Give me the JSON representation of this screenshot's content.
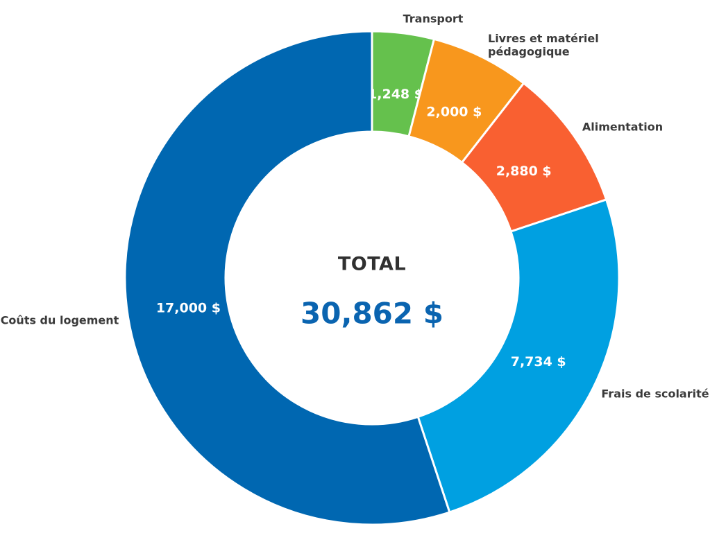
{
  "chart_data": {
    "type": "pie",
    "subtype": "donut",
    "start_angle": "top",
    "direction": "clockwise",
    "total": 30862,
    "center": {
      "label": "TOTAL",
      "value_text": "30,862 $"
    },
    "slices": [
      {
        "slug": "transport",
        "label": "Transport",
        "label_lines": [
          "Transport"
        ],
        "value": 1248,
        "value_text": "1,248 $",
        "color": "#65C14D"
      },
      {
        "slug": "livres-et-materiel-pedagogique",
        "label": "Livres et matériel pédagogique",
        "label_lines": [
          "Livres et matériel",
          "pédagogique"
        ],
        "value": 2000,
        "value_text": "2,000 $",
        "color": "#F8971D"
      },
      {
        "slug": "alimentation",
        "label": "Alimentation",
        "label_lines": [
          "Alimentation"
        ],
        "value": 2880,
        "value_text": "2,880 $",
        "color": "#F96031"
      },
      {
        "slug": "frais-de-scolarite",
        "label": "Frais de scolarité",
        "label_lines": [
          "Frais de scolarité"
        ],
        "value": 7734,
        "value_text": "7,734 $",
        "color": "#00A0E1"
      },
      {
        "slug": "couts-du-logement",
        "label": "Coûts du logement",
        "label_lines": [
          "Coûts du logement"
        ],
        "value": 17000,
        "value_text": "17,000 $",
        "color": "#0067B1"
      }
    ],
    "colors": {
      "value_label_text": "#FFFFFF",
      "category_label_text": "#3A3A3A",
      "center_label_text": "#303030",
      "center_value_text": "#0A64B0",
      "slice_border": "#FFFFFF",
      "background": "#FFFFFF"
    }
  }
}
